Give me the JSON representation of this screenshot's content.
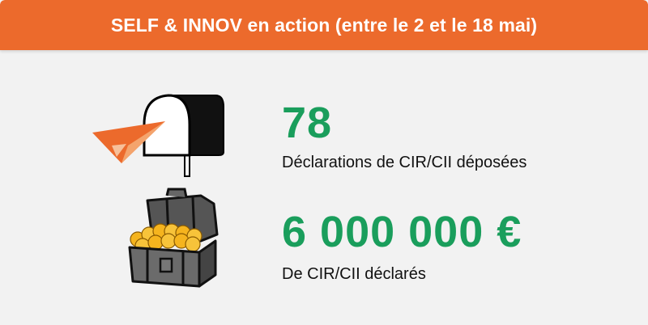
{
  "header": {
    "title": "SELF & INNOV en action (entre le 2 et le 18 mai)"
  },
  "colors": {
    "header_bg": "#ec6a2c",
    "value": "#1a9e5c",
    "background": "#f2f2f2"
  },
  "stats": [
    {
      "value": "78",
      "label": "Déclarations de CIR/CII déposées",
      "icon": "mailbox-paper-plane-icon"
    },
    {
      "value": "6 000 000 €",
      "label": "De CIR/CII déclarés",
      "icon": "treasure-chest-icon"
    }
  ]
}
